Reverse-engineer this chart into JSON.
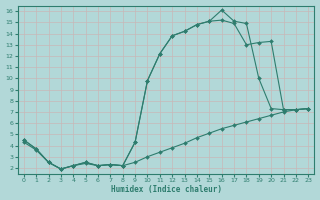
{
  "xlabel": "Humidex (Indice chaleur)",
  "bg_color": "#b2d8d8",
  "grid_color": "#d0e8e8",
  "line_color": "#2e7d6e",
  "xlim": [
    -0.5,
    23.5
  ],
  "ylim": [
    1.5,
    16.5
  ],
  "xticks": [
    0,
    1,
    2,
    3,
    4,
    5,
    6,
    7,
    8,
    9,
    10,
    11,
    12,
    13,
    14,
    15,
    16,
    17,
    18,
    19,
    20,
    21,
    22,
    23
  ],
  "yticks": [
    2,
    3,
    4,
    5,
    6,
    7,
    8,
    9,
    10,
    11,
    12,
    13,
    14,
    15,
    16
  ],
  "line1_x": [
    0,
    1,
    2,
    3,
    4,
    5,
    6,
    7,
    8,
    9,
    10,
    11,
    12,
    13,
    14,
    15,
    16,
    17,
    18,
    19,
    20,
    21,
    22,
    23
  ],
  "line1_y": [
    4.5,
    3.7,
    2.5,
    1.9,
    2.2,
    2.5,
    2.2,
    2.3,
    2.2,
    4.3,
    9.8,
    12.2,
    13.8,
    14.2,
    14.8,
    15.1,
    16.1,
    15.1,
    14.9,
    10.0,
    7.3,
    7.2,
    7.2,
    7.3
  ],
  "line2_x": [
    0,
    1,
    2,
    3,
    4,
    5,
    6,
    7,
    8,
    9,
    10,
    11,
    12,
    13,
    14,
    15,
    16,
    17,
    18,
    19,
    20,
    21,
    22,
    23
  ],
  "line2_y": [
    4.5,
    3.7,
    2.5,
    1.9,
    2.2,
    2.5,
    2.2,
    2.3,
    2.2,
    4.3,
    9.8,
    12.2,
    13.8,
    14.2,
    14.8,
    15.1,
    15.2,
    14.9,
    13.0,
    13.2,
    13.3,
    7.2,
    7.2,
    7.3
  ],
  "line3_x": [
    0,
    1,
    2,
    3,
    4,
    5,
    6,
    7,
    8,
    9,
    10,
    11,
    12,
    13,
    14,
    15,
    16,
    17,
    18,
    19,
    20,
    21,
    22,
    23
  ],
  "line3_y": [
    4.3,
    3.6,
    2.5,
    1.9,
    2.2,
    2.4,
    2.2,
    2.3,
    2.2,
    2.5,
    3.0,
    3.4,
    3.8,
    4.2,
    4.7,
    5.1,
    5.5,
    5.8,
    6.1,
    6.4,
    6.7,
    7.0,
    7.2,
    7.3
  ]
}
